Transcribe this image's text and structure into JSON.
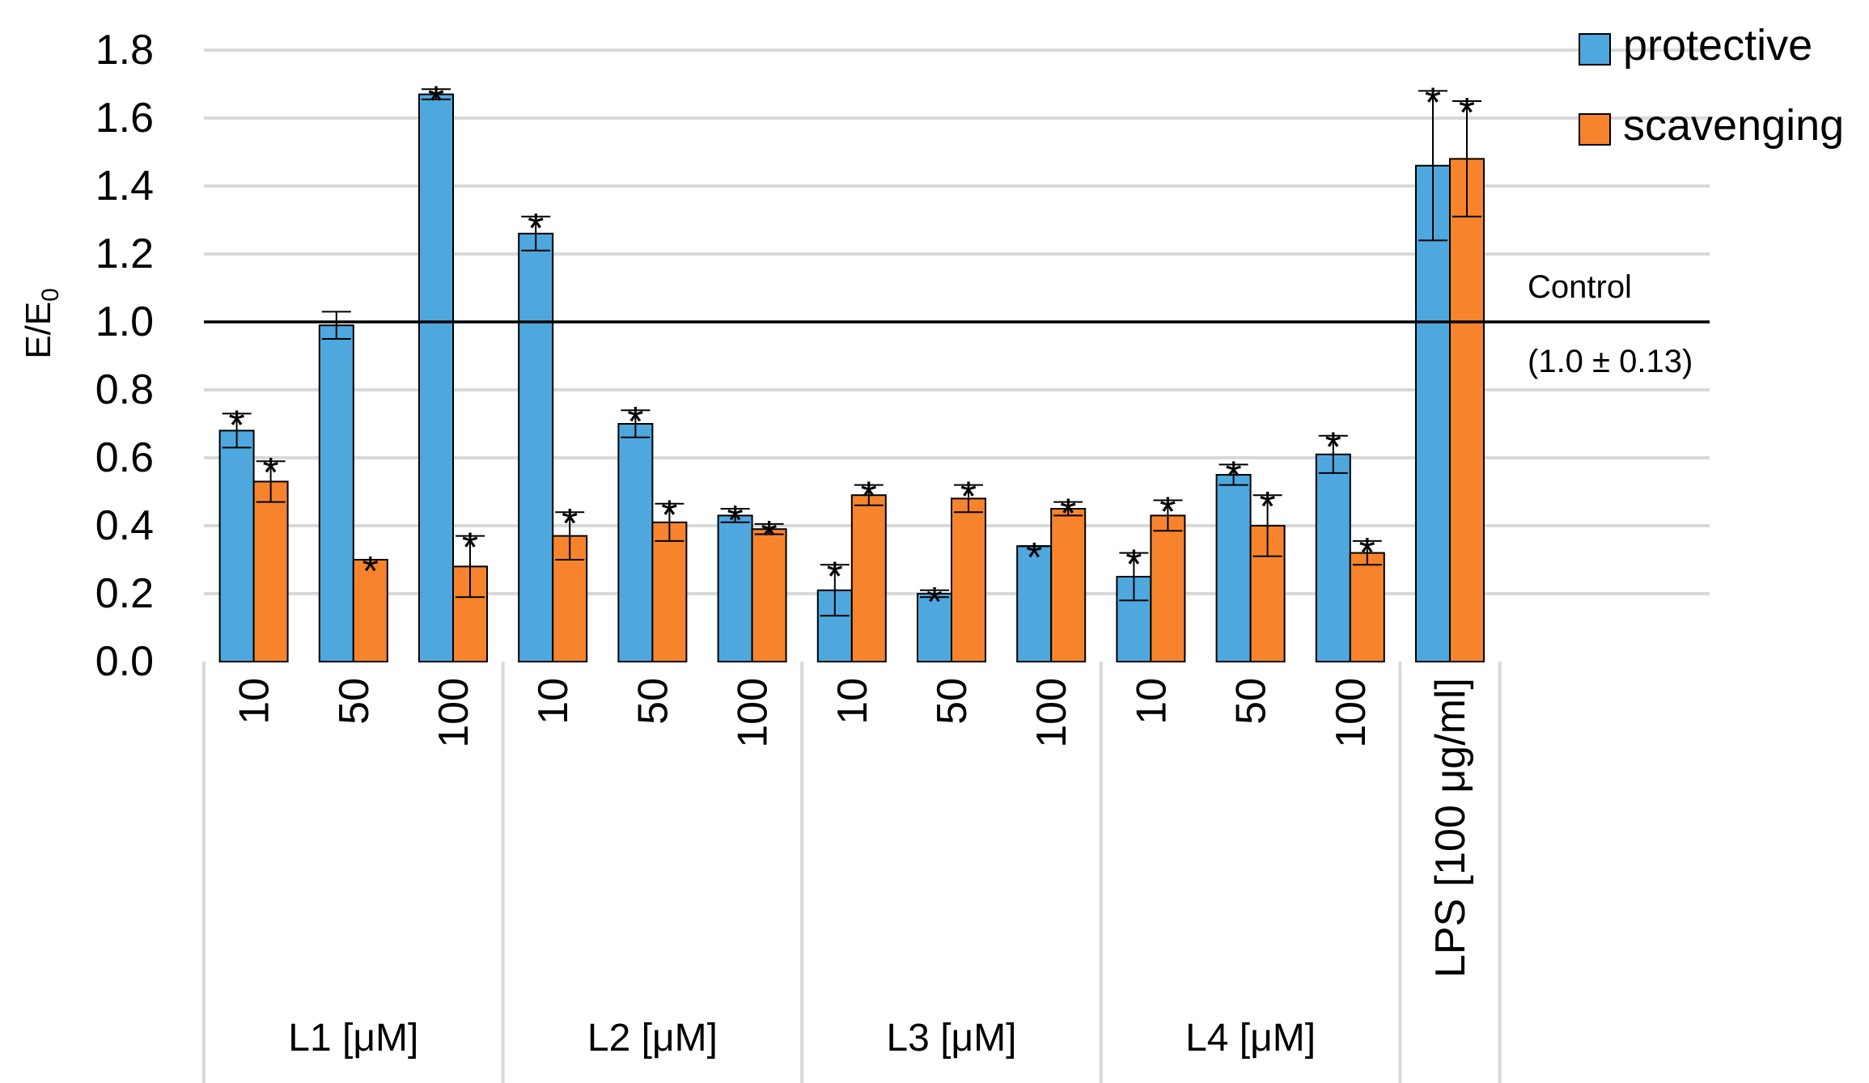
{
  "chart_data": {
    "type": "bar",
    "ylabel": "E/E",
    "ylabel_subscript": "0",
    "ylim": [
      0,
      1.8
    ],
    "yticks": [
      "0.0",
      "0.2",
      "0.4",
      "0.6",
      "0.8",
      "1.0",
      "1.2",
      "1.4",
      "1.6",
      "1.8"
    ],
    "grid": true,
    "legend_position": "top-right",
    "series": [
      {
        "name": "protective",
        "color": "#4EA8DE"
      },
      {
        "name": "scavenging",
        "color": "#F7842C"
      }
    ],
    "bar_outline_color": "#000000",
    "reference_line": {
      "value": 1.0,
      "label": "Control",
      "sublabel": "(1.0 ± 0.13)"
    },
    "categories": [
      {
        "group": "L1 [μM]",
        "label": "10",
        "protective": 0.68,
        "protective_err": 0.05,
        "scavenging": 0.53,
        "scavenging_err": 0.06,
        "protective_star": "*",
        "scavenging_star": "*"
      },
      {
        "group": "L1 [μM]",
        "label": "50",
        "protective": 0.99,
        "protective_err": 0.04,
        "scavenging": 0.3,
        "scavenging_err": 0.0,
        "protective_star": "",
        "scavenging_star": "*"
      },
      {
        "group": "L1 [μM]",
        "label": "100",
        "protective": 1.67,
        "protective_err": 0.015,
        "scavenging": 0.28,
        "scavenging_err": 0.09,
        "protective_star": "*",
        "scavenging_star": "*"
      },
      {
        "group": "L2 [μM]",
        "label": "10",
        "protective": 1.26,
        "protective_err": 0.05,
        "scavenging": 0.37,
        "scavenging_err": 0.07,
        "protective_star": "*",
        "scavenging_star": "*"
      },
      {
        "group": "L2 [μM]",
        "label": "50",
        "protective": 0.7,
        "protective_err": 0.04,
        "scavenging": 0.41,
        "scavenging_err": 0.055,
        "protective_star": "*",
        "scavenging_star": "*"
      },
      {
        "group": "L2 [μM]",
        "label": "100",
        "protective": 0.43,
        "protective_err": 0.02,
        "scavenging": 0.39,
        "scavenging_err": 0.015,
        "protective_star": "*",
        "scavenging_star": "*"
      },
      {
        "group": "L3 [μM]",
        "label": "10",
        "protective": 0.21,
        "protective_err": 0.075,
        "scavenging": 0.49,
        "scavenging_err": 0.03,
        "protective_star": "*",
        "scavenging_star": "*"
      },
      {
        "group": "L3 [μM]",
        "label": "50",
        "protective": 0.2,
        "protective_err": 0.01,
        "scavenging": 0.48,
        "scavenging_err": 0.04,
        "protective_star": "*",
        "scavenging_star": "*"
      },
      {
        "group": "L3 [μM]",
        "label": "100",
        "protective": 0.34,
        "protective_err": 0.0,
        "scavenging": 0.45,
        "scavenging_err": 0.02,
        "protective_star": "*",
        "scavenging_star": "*"
      },
      {
        "group": "L4 [μM]",
        "label": "10",
        "protective": 0.25,
        "protective_err": 0.07,
        "scavenging": 0.43,
        "scavenging_err": 0.045,
        "protective_star": "*",
        "scavenging_star": "*"
      },
      {
        "group": "L4 [μM]",
        "label": "50",
        "protective": 0.55,
        "protective_err": 0.03,
        "scavenging": 0.4,
        "scavenging_err": 0.09,
        "protective_star": "*",
        "scavenging_star": "*"
      },
      {
        "group": "L4 [μM]",
        "label": "100",
        "protective": 0.61,
        "protective_err": 0.055,
        "scavenging": 0.32,
        "scavenging_err": 0.035,
        "protective_star": "*",
        "scavenging_star": "*"
      },
      {
        "group": "",
        "label": "LPS [100 μg/ml]",
        "protective": 1.46,
        "protective_err": 0.22,
        "scavenging": 1.48,
        "scavenging_err": 0.17,
        "protective_star": "*",
        "scavenging_star": "*"
      }
    ],
    "groups": [
      "L1 [μM]",
      "L2 [μM]",
      "L3 [μM]",
      "L4 [μM]"
    ]
  }
}
